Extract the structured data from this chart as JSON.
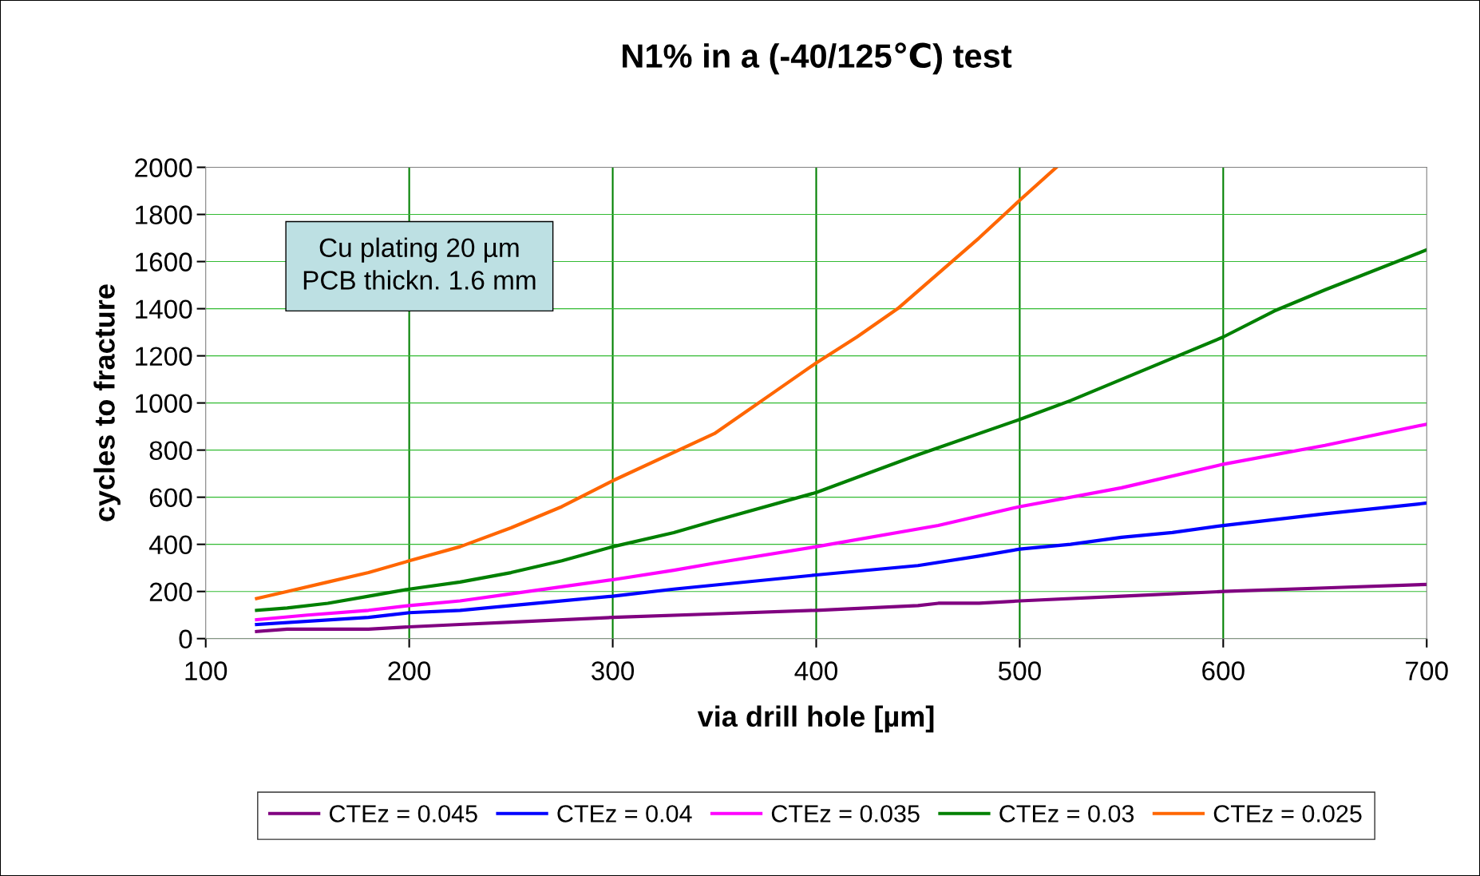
{
  "chart_data": {
    "type": "line",
    "title": "N1% in a (-40/125℃) test",
    "xlabel": "via drill hole [µm]",
    "ylabel": "cycles to fracture",
    "annotations": [
      "Cu plating 20 µm\nPCB thickn. 1.6 mm"
    ],
    "xlim": [
      100,
      700
    ],
    "xticks": [
      100,
      200,
      300,
      400,
      500,
      600,
      700
    ],
    "ylim": [
      0,
      2000
    ],
    "yticks": [
      0,
      200,
      400,
      600,
      800,
      1000,
      1200,
      1400,
      1600,
      1800,
      2000
    ],
    "grid": true,
    "legend": "bottom",
    "marker": "none",
    "line_style": "solid",
    "series": [
      {
        "name": "CTEz = 0.045",
        "color": "#800080",
        "x": [
          125,
          140,
          180,
          200,
          225,
          250,
          300,
          350,
          400,
          450,
          460,
          480,
          500,
          550,
          600,
          650,
          700
        ],
        "values": [
          30,
          40,
          40,
          50,
          60,
          70,
          90,
          105,
          120,
          140,
          150,
          150,
          160,
          180,
          200,
          215,
          230
        ]
      },
      {
        "name": "CTEz = 0.04",
        "color": "#0000ff",
        "x": [
          125,
          180,
          200,
          225,
          250,
          300,
          330,
          400,
          450,
          480,
          500,
          525,
          550,
          575,
          600,
          650,
          700
        ],
        "values": [
          60,
          90,
          110,
          120,
          140,
          180,
          210,
          270,
          310,
          350,
          380,
          400,
          430,
          450,
          480,
          530,
          575
        ]
      },
      {
        "name": "CTEz = 0.035",
        "color": "#ff00ff",
        "x": [
          125,
          150,
          180,
          200,
          225,
          250,
          300,
          330,
          350,
          400,
          460,
          500,
          550,
          600,
          650,
          700
        ],
        "values": [
          80,
          100,
          120,
          140,
          160,
          190,
          250,
          290,
          320,
          390,
          480,
          560,
          640,
          740,
          820,
          910
        ]
      },
      {
        "name": "CTEz = 0.03",
        "color": "#008000",
        "x": [
          125,
          140,
          160,
          180,
          200,
          225,
          250,
          275,
          300,
          330,
          350,
          400,
          450,
          500,
          525,
          550,
          600,
          625,
          650,
          700
        ],
        "values": [
          120,
          130,
          150,
          180,
          210,
          240,
          280,
          330,
          390,
          450,
          500,
          620,
          780,
          930,
          1010,
          1100,
          1280,
          1390,
          1480,
          1650
        ]
      },
      {
        "name": "CTEz = 0.025",
        "color": "#ff6600",
        "x": [
          125,
          140,
          160,
          180,
          200,
          225,
          250,
          275,
          300,
          350,
          380,
          400,
          420,
          440,
          460,
          480,
          500,
          518
        ],
        "values": [
          170,
          200,
          240,
          280,
          330,
          390,
          470,
          560,
          670,
          870,
          1050,
          1170,
          1280,
          1400,
          1550,
          1700,
          1860,
          2000
        ]
      }
    ]
  }
}
